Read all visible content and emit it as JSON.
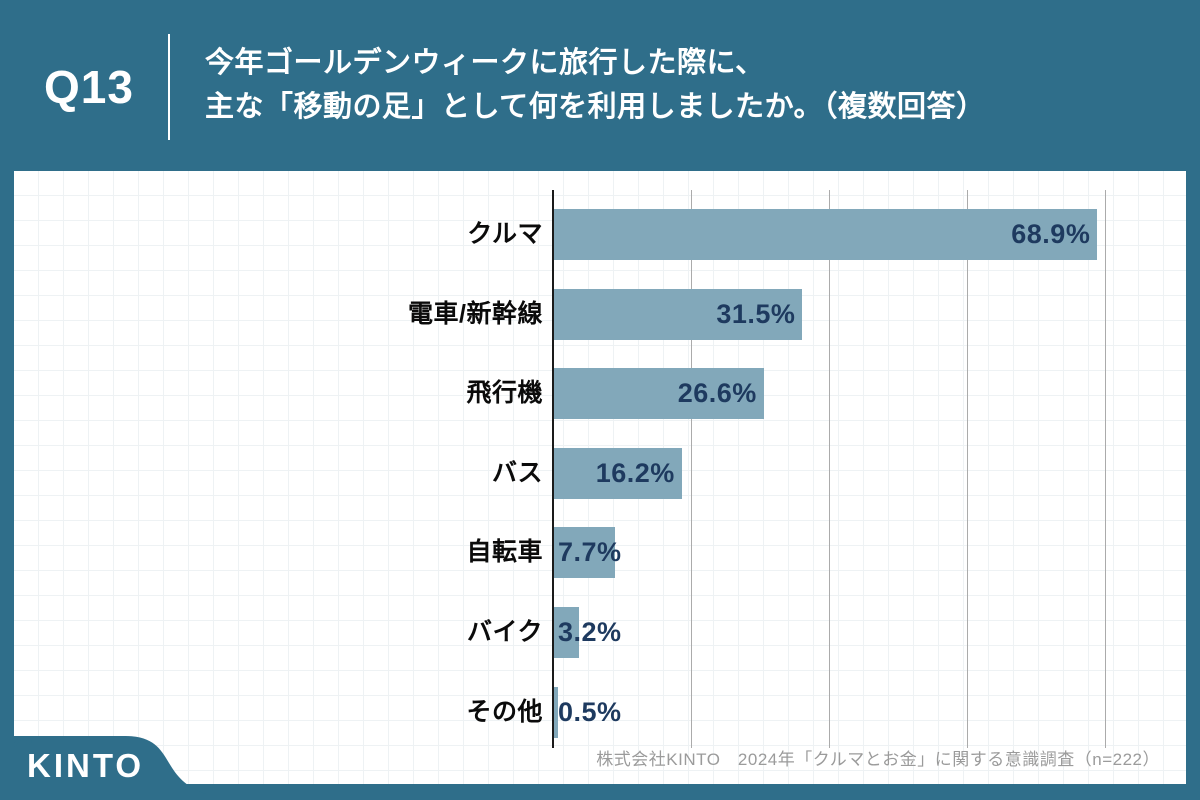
{
  "header": {
    "question_number": "Q13",
    "question_line1": "今年ゴールデンウィークに旅行した際に、",
    "question_line2": "主な「移動の足」として何を利用しましたか。（複数回答）"
  },
  "chart_data": {
    "type": "bar",
    "orientation": "horizontal",
    "title": "今年ゴールデンウィークに旅行した際に、主な「移動の足」として何を利用しましたか。（複数回答）",
    "categories": [
      "クルマ",
      "電車/新幹線",
      "飛行機",
      "バス",
      "自転車",
      "バイク",
      "その他"
    ],
    "values": [
      68.9,
      31.5,
      26.6,
      16.2,
      7.7,
      3.2,
      0.5
    ],
    "value_labels": [
      "68.9%",
      "31.5%",
      "26.6%",
      "16.2%",
      "7.7%",
      "3.2%",
      "0.5%"
    ],
    "xlabel": "",
    "ylabel": "",
    "xlim": [
      0,
      70
    ],
    "grid": true,
    "gridline_positions_pct": [
      17.5,
      35,
      52.5,
      70
    ],
    "legend": false
  },
  "footer": {
    "logo_text": "KINTO",
    "source_text": "株式会社KINTO　2024年「クルマとお金」に関する意識調査（n=222）"
  },
  "colors": {
    "background": "#2F6E8A",
    "card": "#FFFFFF",
    "bar": "#82A8BA",
    "value_label": "#1E3A5F",
    "category_label": "#0B0B0B",
    "axis": "#1A1A1A",
    "gridline": "#ABABAB",
    "header_text": "#FFFFFF",
    "source_text": "#9B9B9B"
  }
}
